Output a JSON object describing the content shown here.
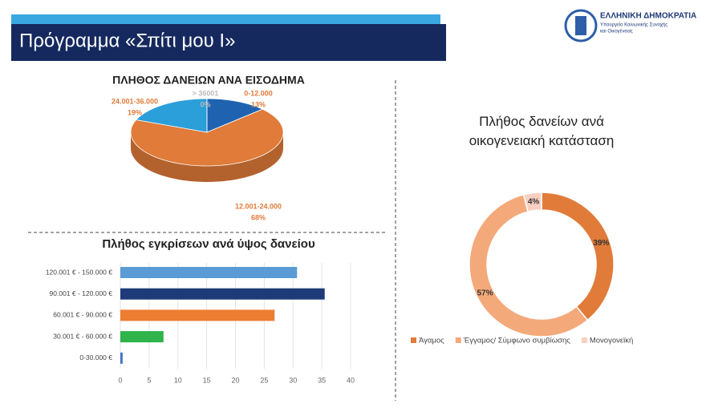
{
  "header": {
    "title": "Πρόγραμμα «Σπίτι μου Ι»",
    "org_name": "ΕΛΛΗΝΙΚΗ ΔΗΜΟΚΡΑΤΙΑ",
    "ministry": [
      "Υπουργείο Κοινωνικής Συνοχής",
      "και Οικογένειας"
    ]
  },
  "chart_data": [
    {
      "type": "pie",
      "three_d": true,
      "title": "ΠΛΗΘΟΣ ΔΑΝΕΙΩΝ ΑΝΑ ΕΙΣΟΔΗΜΑ",
      "categories": [
        "0-12.000",
        "12.001-24.000",
        "24.001-36.000",
        "> 36001"
      ],
      "values": [
        13,
        68,
        19,
        0
      ],
      "value_labels": [
        "13%",
        "68%",
        "19%",
        "0%"
      ],
      "colors": [
        "#1f63b0",
        "#e07b39",
        "#2b9fd9",
        "#a6a6a6"
      ]
    },
    {
      "type": "bar",
      "horizontal": true,
      "title": "Πλήθος εγκρίσεων ανά ύψος δανείου",
      "categories": [
        "120.001 € - 150.000 €",
        "90.001 € - 120.000 €",
        "60.001 € - 90.000 €",
        "30.001 € - 60.000 €",
        "0-30.000 €"
      ],
      "values": [
        30.7,
        35.5,
        26.8,
        7.5,
        0.4
      ],
      "colors": [
        "#5b9bd5",
        "#1f3a78",
        "#ed7d31",
        "#2fb34a",
        "#4472c4"
      ],
      "xlim": [
        0,
        40
      ],
      "xticks": [
        0,
        5,
        10,
        15,
        20,
        25,
        30,
        35,
        40
      ],
      "grid": true
    },
    {
      "type": "donut",
      "title": "Πλήθος δανείων ανά οικογενειακή κατάσταση",
      "categories": [
        "Άγαμος",
        "Έγγαμος/ Σύμφωνο συμβίωσης",
        "Μονογονεϊκή"
      ],
      "values": [
        39,
        57,
        4
      ],
      "value_labels": [
        "39%",
        "57%",
        "4%"
      ],
      "colors": [
        "#e07b39",
        "#f4a97a",
        "#f8cfc1"
      ],
      "legend": "bottom"
    }
  ]
}
